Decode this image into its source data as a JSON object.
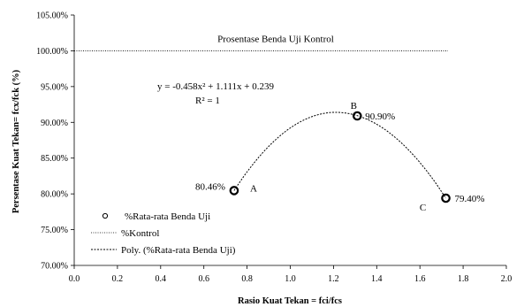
{
  "chart_data": {
    "type": "scatter",
    "xlabel": "Rasio Kuat Tekan = fci/fcs",
    "ylabel": "Persentase Kuat Tekan= fcx/fck (%)",
    "xlim": [
      0.0,
      2.0
    ],
    "ylim": [
      0.7,
      1.05
    ],
    "x_ticks": [
      0.0,
      0.2,
      0.4,
      0.6,
      0.8,
      1.0,
      1.2,
      1.4,
      1.6,
      1.8,
      2.0
    ],
    "x_tick_labels": [
      "0.0",
      "0.2",
      "0.4",
      "0.6",
      "0.8",
      "1.0",
      "1.2",
      "1.4",
      "1.6",
      "1.8",
      "2.0"
    ],
    "y_ticks": [
      0.7,
      0.75,
      0.8,
      0.85,
      0.9,
      0.95,
      1.0,
      1.05
    ],
    "y_tick_labels": [
      "70.00%",
      "75.00%",
      "80.00%",
      "85.00%",
      "90.00%",
      "95.00%",
      "100.00%",
      "105.00%"
    ],
    "grid": false,
    "legend_position": "bottom-left",
    "series": [
      {
        "name": "%Rata-rata Benda Uji",
        "kind": "scatter",
        "marker": "open-circle",
        "x": [
          0.74,
          1.31,
          1.72
        ],
        "y": [
          0.8046,
          0.909,
          0.794
        ],
        "point_letters": [
          "A",
          "B",
          "C"
        ],
        "value_labels": [
          "80.46%",
          "90.90%",
          "79.40%"
        ]
      },
      {
        "name": "%Kontrol",
        "kind": "line",
        "style": "dotted",
        "x": [
          0.0,
          1.73
        ],
        "y": [
          1.0,
          1.0
        ],
        "annotation": "Prosentase Benda Uji Kontrol"
      },
      {
        "name": "Poly. (%Rata-rata Benda Uji)",
        "kind": "trendline",
        "style": "dashed",
        "fit": "polynomial-2",
        "x_range": [
          0.74,
          1.72
        ],
        "peak": [
          1.21,
          0.914
        ]
      }
    ],
    "equation": "y = -0.458x² + 1.111x + 0.239",
    "r_squared": "R² = 1",
    "colors": {
      "points": "#000000",
      "lines": "#000000",
      "axes": "#000000"
    }
  }
}
